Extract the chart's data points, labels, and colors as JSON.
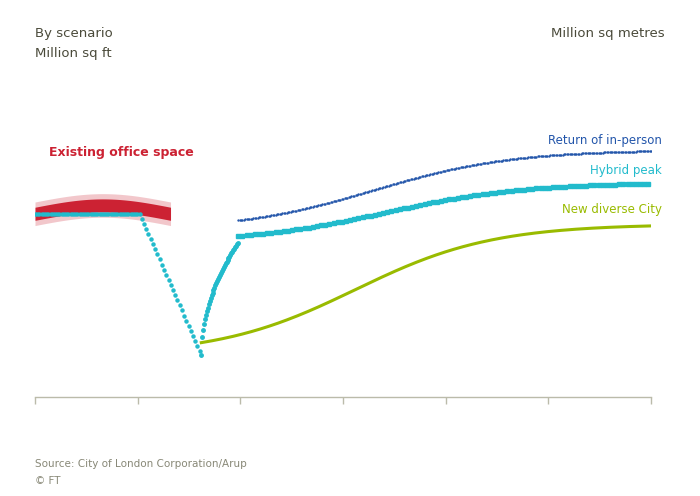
{
  "title_left_1": "By scenario",
  "title_left_2": "Million sq ft",
  "title_right": "Million sq metres",
  "source": "Source: City of London Corporation/Arup",
  "copyright": "© FT",
  "bg_color": "#ffffff",
  "text_color": "#4a4a3a",
  "existing_color": "#cc2233",
  "return_color": "#2255aa",
  "hybrid_color": "#22bbcc",
  "diverse_color": "#99bb00",
  "spine_color": "#bbbbaa",
  "tick_color": "#bbbbaa",
  "annotation_existing_color": "#cc2233",
  "annotation_return_color": "#2255aa",
  "annotation_hybrid_color": "#22bbcc",
  "annotation_diverse_color": "#99bb00"
}
